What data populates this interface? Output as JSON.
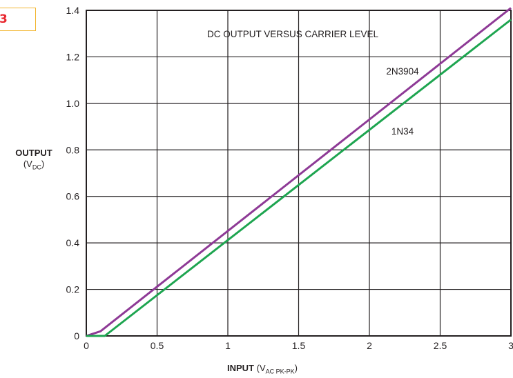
{
  "figure_number": "3",
  "chart_data": {
    "type": "line",
    "title": "DC OUTPUT VERSUS CARRIER LEVEL",
    "ylabel": {
      "main": "OUTPUT",
      "unit_prefix": "(V",
      "unit_sub": "DC",
      "unit_suffix": ")"
    },
    "xlabel": {
      "main": "INPUT",
      "unit_prefix": " (V",
      "unit_sub": "AC PK-PK",
      "unit_suffix": ")"
    },
    "xlim": [
      0,
      3
    ],
    "ylim": [
      0,
      1.4
    ],
    "x_ticks": [
      "0",
      "0.5",
      "1",
      "1.5",
      "2",
      "2.5",
      "3"
    ],
    "y_ticks": [
      "0",
      "0.2",
      "0.4",
      "0.6",
      "0.8",
      "1.0",
      "1.2",
      "1.4"
    ],
    "grid": true,
    "series": [
      {
        "name": "2N3904",
        "color": "#8e3a96",
        "points": [
          [
            0,
            0
          ],
          [
            0.1,
            0.02
          ],
          [
            3,
            1.41
          ]
        ]
      },
      {
        "name": "1N34",
        "color": "#1ea550",
        "points": [
          [
            0,
            0
          ],
          [
            0.13,
            0
          ],
          [
            3,
            1.36
          ]
        ]
      }
    ]
  }
}
